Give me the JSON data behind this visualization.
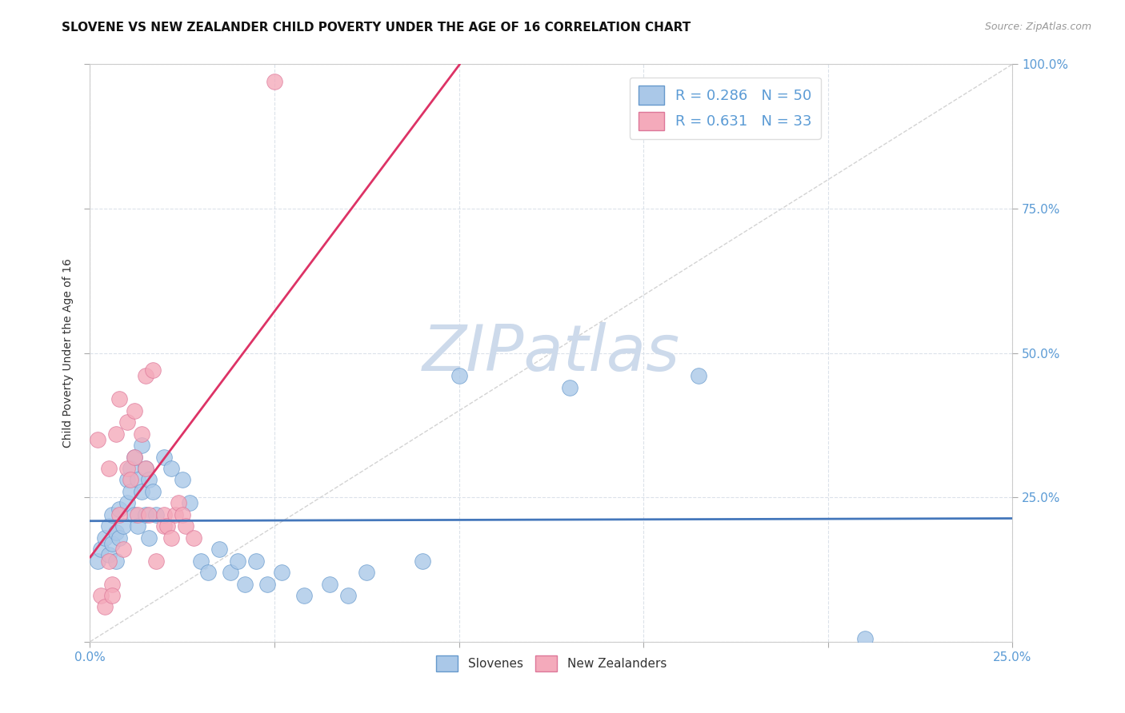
{
  "title": "SLOVENE VS NEW ZEALANDER CHILD POVERTY UNDER THE AGE OF 16 CORRELATION CHART",
  "source": "Source: ZipAtlas.com",
  "ylabel": "Child Poverty Under the Age of 16",
  "xlim": [
    0.0,
    0.25
  ],
  "ylim": [
    0.0,
    1.0
  ],
  "slovene_color": "#aac8e8",
  "slovene_edge": "#6699cc",
  "nz_color": "#f4aabb",
  "nz_edge": "#dd7799",
  "trend_slovene_color": "#4477bb",
  "trend_nz_color": "#dd3366",
  "diagonal_color": "#c8c8c8",
  "watermark_color": "#cddaeb",
  "slovene_R": "0.286",
  "slovene_N": "50",
  "nz_R": "0.631",
  "nz_N": "33",
  "slovene_points": [
    [
      0.002,
      0.14
    ],
    [
      0.003,
      0.16
    ],
    [
      0.004,
      0.18
    ],
    [
      0.005,
      0.2
    ],
    [
      0.005,
      0.15
    ],
    [
      0.006,
      0.22
    ],
    [
      0.006,
      0.17
    ],
    [
      0.007,
      0.19
    ],
    [
      0.007,
      0.14
    ],
    [
      0.008,
      0.23
    ],
    [
      0.008,
      0.18
    ],
    [
      0.009,
      0.2
    ],
    [
      0.01,
      0.28
    ],
    [
      0.01,
      0.24
    ],
    [
      0.011,
      0.3
    ],
    [
      0.011,
      0.26
    ],
    [
      0.012,
      0.32
    ],
    [
      0.012,
      0.22
    ],
    [
      0.013,
      0.28
    ],
    [
      0.013,
      0.2
    ],
    [
      0.014,
      0.34
    ],
    [
      0.014,
      0.26
    ],
    [
      0.015,
      0.3
    ],
    [
      0.015,
      0.22
    ],
    [
      0.016,
      0.28
    ],
    [
      0.016,
      0.18
    ],
    [
      0.017,
      0.26
    ],
    [
      0.018,
      0.22
    ],
    [
      0.02,
      0.32
    ],
    [
      0.022,
      0.3
    ],
    [
      0.025,
      0.28
    ],
    [
      0.027,
      0.24
    ],
    [
      0.03,
      0.14
    ],
    [
      0.032,
      0.12
    ],
    [
      0.035,
      0.16
    ],
    [
      0.038,
      0.12
    ],
    [
      0.04,
      0.14
    ],
    [
      0.042,
      0.1
    ],
    [
      0.045,
      0.14
    ],
    [
      0.048,
      0.1
    ],
    [
      0.052,
      0.12
    ],
    [
      0.058,
      0.08
    ],
    [
      0.065,
      0.1
    ],
    [
      0.07,
      0.08
    ],
    [
      0.075,
      0.12
    ],
    [
      0.09,
      0.14
    ],
    [
      0.1,
      0.46
    ],
    [
      0.13,
      0.44
    ],
    [
      0.165,
      0.46
    ],
    [
      0.21,
      0.005
    ]
  ],
  "nz_points": [
    [
      0.002,
      0.35
    ],
    [
      0.003,
      0.08
    ],
    [
      0.004,
      0.06
    ],
    [
      0.005,
      0.14
    ],
    [
      0.005,
      0.3
    ],
    [
      0.006,
      0.1
    ],
    [
      0.006,
      0.08
    ],
    [
      0.007,
      0.36
    ],
    [
      0.008,
      0.42
    ],
    [
      0.008,
      0.22
    ],
    [
      0.009,
      0.16
    ],
    [
      0.01,
      0.38
    ],
    [
      0.01,
      0.3
    ],
    [
      0.011,
      0.28
    ],
    [
      0.012,
      0.4
    ],
    [
      0.012,
      0.32
    ],
    [
      0.013,
      0.22
    ],
    [
      0.014,
      0.36
    ],
    [
      0.015,
      0.3
    ],
    [
      0.015,
      0.46
    ],
    [
      0.016,
      0.22
    ],
    [
      0.017,
      0.47
    ],
    [
      0.018,
      0.14
    ],
    [
      0.02,
      0.2
    ],
    [
      0.02,
      0.22
    ],
    [
      0.021,
      0.2
    ],
    [
      0.022,
      0.18
    ],
    [
      0.023,
      0.22
    ],
    [
      0.024,
      0.24
    ],
    [
      0.025,
      0.22
    ],
    [
      0.026,
      0.2
    ],
    [
      0.028,
      0.18
    ],
    [
      0.05,
      0.97
    ]
  ]
}
